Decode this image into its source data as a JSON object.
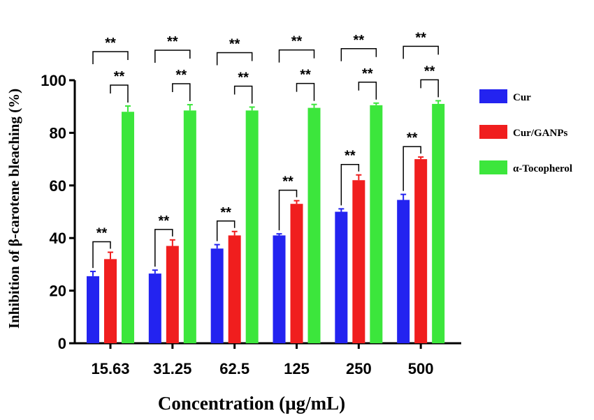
{
  "chart_data": {
    "type": "bar",
    "title": "",
    "xlabel": "Concentration (µg/mL)",
    "ylabel": "Inhibition of β-carotene bleaching (%)",
    "ylim": [
      0,
      100
    ],
    "yticks": [
      "0",
      "20",
      "40",
      "60",
      "80",
      "100"
    ],
    "categories": [
      "15.63",
      "31.25",
      "62.5",
      "125",
      "250",
      "500"
    ],
    "series": [
      {
        "name": "Cur",
        "color": "#2323f0",
        "values": [
          25.5,
          26.5,
          36,
          41,
          50,
          54.5
        ],
        "errors": [
          1.8,
          1.3,
          1.5,
          0.6,
          1.1,
          2.1
        ]
      },
      {
        "name": "Cur/GANPs",
        "color": "#f01e1e",
        "values": [
          32,
          37,
          41,
          53,
          62,
          70
        ],
        "errors": [
          2.6,
          2.3,
          1.5,
          1.2,
          2.0,
          0.8
        ]
      },
      {
        "name": "α-Tocopherol",
        "color": "#3ce63c",
        "values": [
          88,
          88.5,
          88.5,
          89.5,
          90.5,
          91
        ],
        "errors": [
          2.2,
          2.2,
          1.3,
          1.3,
          0.8,
          1.2
        ]
      }
    ],
    "significance": {
      "pair_label": "**",
      "cur_vs_curganps_label": "**",
      "curganps_vs_tocopherol_label": "**",
      "cur_vs_tocopherol_label": "**"
    },
    "legend_position": "right",
    "grid": false
  }
}
